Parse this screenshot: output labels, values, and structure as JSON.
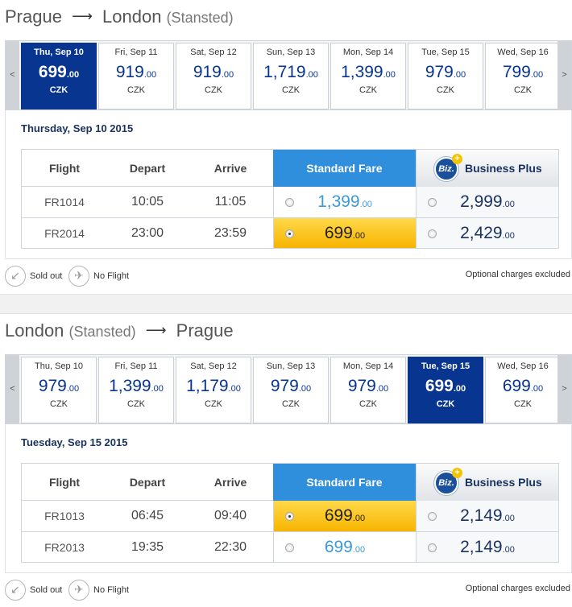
{
  "outbound": {
    "from": "Prague",
    "to": "London",
    "to_sub": "(Stansted)",
    "prev": "<",
    "next": ">",
    "days": [
      {
        "label": "Thu, Sep 10",
        "int": "699",
        "dec": ".00",
        "cur": "CZK",
        "selected": true
      },
      {
        "label": "Fri, Sep 11",
        "int": "919",
        "dec": ".00",
        "cur": "CZK"
      },
      {
        "label": "Sat, Sep 12",
        "int": "919",
        "dec": ".00",
        "cur": "CZK"
      },
      {
        "label": "Sun, Sep 13",
        "int": "1,719",
        "dec": ".00",
        "cur": "CZK"
      },
      {
        "label": "Mon, Sep 14",
        "int": "1,399",
        "dec": ".00",
        "cur": "CZK"
      },
      {
        "label": "Tue, Sep 15",
        "int": "979",
        "dec": ".00",
        "cur": "CZK"
      },
      {
        "label": "Wed, Sep 16",
        "int": "799",
        "dec": ".00",
        "cur": "CZK"
      }
    ],
    "date_heading": "Thursday, Sep 10 2015",
    "flights": [
      {
        "num": "FR1014",
        "dep": "10:05",
        "arr": "11:05",
        "std_int": "1,399",
        "std_dec": ".00",
        "biz_int": "2,999",
        "biz_dec": ".00"
      },
      {
        "num": "FR2014",
        "dep": "23:00",
        "arr": "23:59",
        "std_int": "699",
        "std_dec": ".00",
        "biz_int": "2,429",
        "biz_dec": ".00"
      }
    ]
  },
  "inbound": {
    "from": "London",
    "from_sub": "(Stansted)",
    "to": "Prague",
    "prev": "<",
    "next": ">",
    "days": [
      {
        "label": "Thu, Sep 10",
        "int": "979",
        "dec": ".00",
        "cur": "CZK"
      },
      {
        "label": "Fri, Sep 11",
        "int": "1,399",
        "dec": ".00",
        "cur": "CZK"
      },
      {
        "label": "Sat, Sep 12",
        "int": "1,179",
        "dec": ".00",
        "cur": "CZK"
      },
      {
        "label": "Sun, Sep 13",
        "int": "979",
        "dec": ".00",
        "cur": "CZK"
      },
      {
        "label": "Mon, Sep 14",
        "int": "979",
        "dec": ".00",
        "cur": "CZK"
      },
      {
        "label": "Tue, Sep 15",
        "int": "699",
        "dec": ".00",
        "cur": "CZK",
        "selected": true
      },
      {
        "label": "Wed, Sep 16",
        "int": "699",
        "dec": ".00",
        "cur": "CZK"
      }
    ],
    "date_heading": "Tuesday, Sep 15 2015",
    "flights": [
      {
        "num": "FR1013",
        "dep": "06:45",
        "arr": "09:40",
        "std_int": "699",
        "std_dec": ".00",
        "biz_int": "2,149",
        "biz_dec": ".00"
      },
      {
        "num": "FR2013",
        "dep": "19:35",
        "arr": "22:30",
        "std_int": "699",
        "std_dec": ".00",
        "biz_int": "2,149",
        "biz_dec": ".00"
      }
    ]
  },
  "table": {
    "col_flight": "Flight",
    "col_depart": "Depart",
    "col_arrive": "Arrive",
    "col_standard": "Standard Fare",
    "col_business": "Business Plus",
    "biz_logo": "Biz.",
    "biz_logo_plus": "+"
  },
  "legend": {
    "sold_out": "Sold out",
    "no_flight": "No Flight",
    "optional": "Optional charges excluded"
  },
  "colors": {
    "selected_day": "#073590",
    "standard_header": "#2f8fdc",
    "chosen_fare": "#f7b500"
  }
}
